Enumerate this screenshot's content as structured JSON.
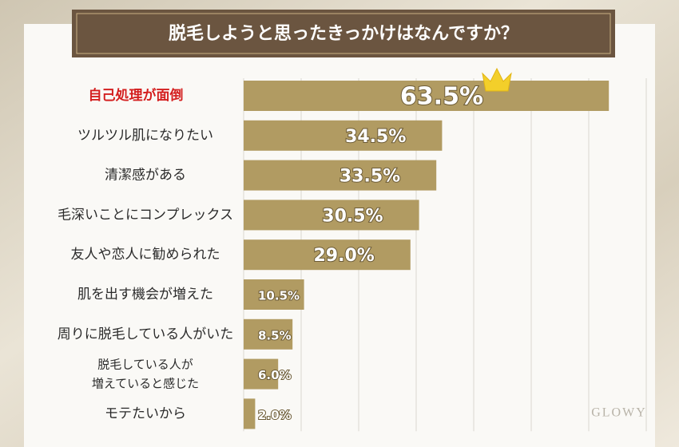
{
  "chart_data": {
    "type": "bar",
    "orientation": "horizontal",
    "title": "脱毛しようと思ったきっかけはなんですか？",
    "categories": [
      "自己処理が面倒",
      "ツルツル肌になりたい",
      "清潔感がある",
      "毛深いことにコンプレックス",
      "友人や恋人に勧められた",
      "肌を出す機会が増えた",
      "周りに脱毛している人がいた",
      "脱毛している人が\n増えていると感じた",
      "モテたいから"
    ],
    "values": [
      63.5,
      34.5,
      33.5,
      30.5,
      29.0,
      10.5,
      8.5,
      6.0,
      2.0
    ],
    "value_labels": [
      "63.5%",
      "34.5%",
      "33.5%",
      "30.5%",
      "29.0%",
      "10.5%",
      "8.5%",
      "6.0%",
      "2.0%"
    ],
    "color": "#b19b62",
    "highlight": {
      "category": 0,
      "color": "#d41f1f"
    },
    "xlim": [
      0,
      70
    ],
    "xticks": [
      0,
      10,
      20,
      30,
      40,
      50,
      60,
      70
    ],
    "grid": true
  },
  "watermark": "GLOWY"
}
